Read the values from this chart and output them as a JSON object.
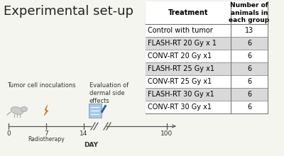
{
  "title": "Experimental set-up",
  "table_headers": [
    "Treatment",
    "Number of\nanimals in\neach group"
  ],
  "table_rows": [
    [
      "Control with tumor",
      "13"
    ],
    [
      "FLASH-RT 20 Gy x 1",
      "6"
    ],
    [
      "CONV-RT 20 Gy x1",
      "6"
    ],
    [
      "FLASH-RT 25 Gy x1",
      "6"
    ],
    [
      "CONV-RT 25 Gy x1",
      "6"
    ],
    [
      "FLASH-RT 30 Gy x1",
      "6"
    ],
    [
      "CONV-RT 30 Gy x1",
      "6"
    ]
  ],
  "row_colors": [
    "#ffffff",
    "#d9d9d9",
    "#ffffff",
    "#d9d9d9",
    "#ffffff",
    "#d9d9d9",
    "#ffffff"
  ],
  "timeline_labels": [
    "0",
    "7",
    "14",
    "100"
  ],
  "radiotherapy_label": "Radiotherapy",
  "day_label": "DAY",
  "annotation1": "Tumor cell inoculations",
  "annotation2": "Evaluation of\ndermal side\neffects",
  "bg_color": "#f5f5f0",
  "title_fontsize": 13,
  "table_fontsize": 7,
  "anno_fontsize": 6
}
